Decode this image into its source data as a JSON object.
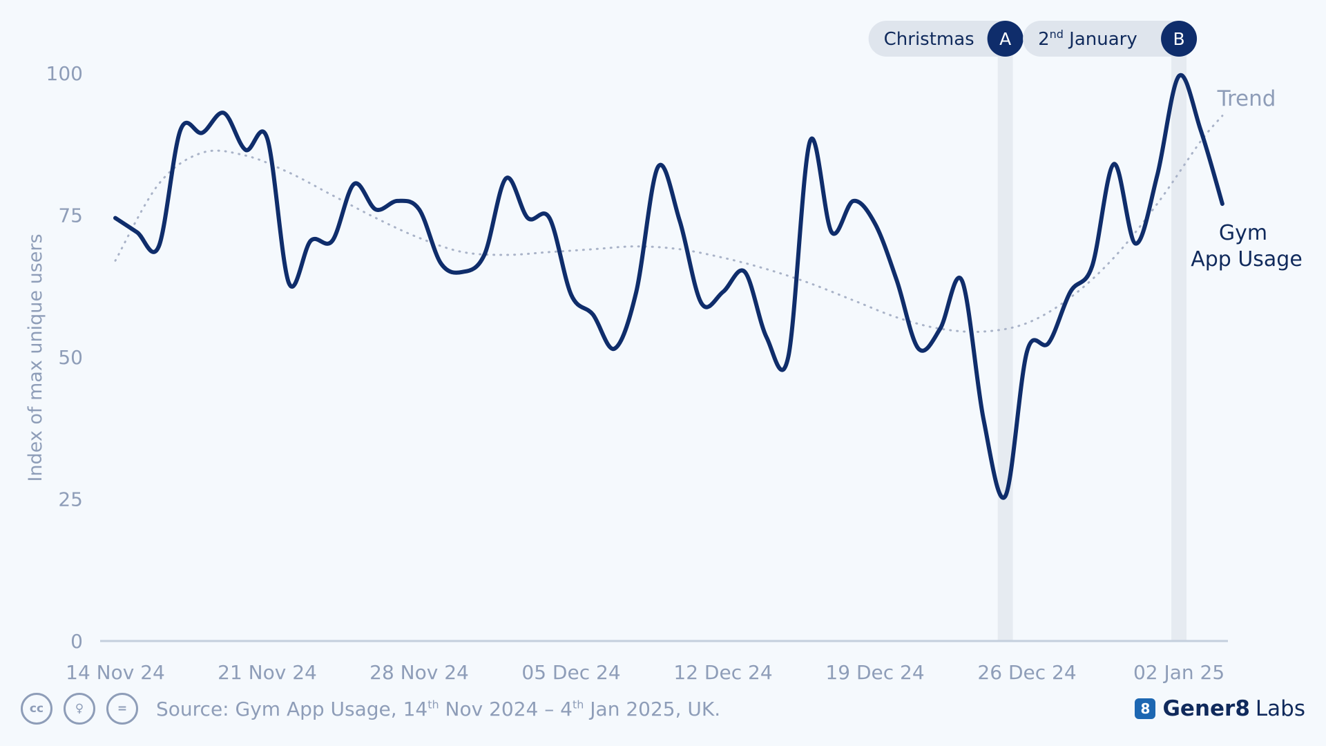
{
  "chart_data": {
    "type": "line",
    "title": "",
    "xlabel": "",
    "ylabel": "Index of max unique users",
    "ylim": [
      0,
      100
    ],
    "yticks": [
      "0",
      "25",
      "50",
      "75",
      "100"
    ],
    "grid": false,
    "xticks": [
      {
        "date": "2024-11-14",
        "label": "14 Nov 24"
      },
      {
        "date": "2024-11-21",
        "label": "21 Nov 24"
      },
      {
        "date": "2024-11-28",
        "label": "28 Nov 24"
      },
      {
        "date": "2024-12-05",
        "label": "05 Dec 24"
      },
      {
        "date": "2024-12-12",
        "label": "12 Dec 24"
      },
      {
        "date": "2024-12-19",
        "label": "19 Dec 24"
      },
      {
        "date": "2024-12-26",
        "label": "26 Dec 24"
      },
      {
        "date": "2025-01-02",
        "label": "02 Jan 25"
      }
    ],
    "series": [
      {
        "name": "Gym App Usage",
        "color": "#0f2d6b",
        "style": "solid",
        "points": [
          [
            "2024-11-14",
            74.5
          ],
          [
            "2024-11-15",
            72
          ],
          [
            "2024-11-16",
            69.5
          ],
          [
            "2024-11-17",
            90
          ],
          [
            "2024-11-18",
            89.5
          ],
          [
            "2024-11-19",
            93
          ],
          [
            "2024-11-20",
            86.5
          ],
          [
            "2024-11-21",
            88.5
          ],
          [
            "2024-11-22",
            63
          ],
          [
            "2024-11-23",
            70.5
          ],
          [
            "2024-11-24",
            70.5
          ],
          [
            "2024-11-25",
            80.5
          ],
          [
            "2024-11-26",
            76
          ],
          [
            "2024-11-27",
            77.5
          ],
          [
            "2024-11-28",
            76
          ],
          [
            "2024-11-29",
            66.5
          ],
          [
            "2024-11-30",
            65
          ],
          [
            "2024-12-01",
            68
          ],
          [
            "2024-12-02",
            81.5
          ],
          [
            "2024-12-03",
            74.5
          ],
          [
            "2024-12-04",
            74.5
          ],
          [
            "2024-12-05",
            61
          ],
          [
            "2024-12-06",
            57.5
          ],
          [
            "2024-12-07",
            51.5
          ],
          [
            "2024-12-08",
            61.5
          ],
          [
            "2024-12-09",
            83.5
          ],
          [
            "2024-12-10",
            74
          ],
          [
            "2024-12-11",
            59.5
          ],
          [
            "2024-12-12",
            61.5
          ],
          [
            "2024-12-13",
            65
          ],
          [
            "2024-12-14",
            53.5
          ],
          [
            "2024-12-15",
            50
          ],
          [
            "2024-12-16",
            88
          ],
          [
            "2024-12-17",
            72
          ],
          [
            "2024-12-18",
            77.5
          ],
          [
            "2024-12-19",
            73.5
          ],
          [
            "2024-12-20",
            63.5
          ],
          [
            "2024-12-21",
            51.5
          ],
          [
            "2024-12-22",
            55
          ],
          [
            "2024-12-23",
            63.5
          ],
          [
            "2024-12-24",
            39
          ],
          [
            "2024-12-25",
            25.5
          ],
          [
            "2024-12-26",
            51
          ],
          [
            "2024-12-27",
            52.5
          ],
          [
            "2024-12-28",
            61.5
          ],
          [
            "2024-12-29",
            66
          ],
          [
            "2024-12-30",
            84
          ],
          [
            "2024-12-31",
            70
          ],
          [
            "2025-01-01",
            82
          ],
          [
            "2025-01-02",
            99.5
          ],
          [
            "2025-01-03",
            90
          ],
          [
            "2025-01-04",
            77
          ]
        ]
      },
      {
        "name": "Trend",
        "color": "#a9b3c8",
        "style": "dotted",
        "points": [
          [
            "2024-11-14",
            67
          ],
          [
            "2024-11-16",
            80.5
          ],
          [
            "2024-11-18",
            86
          ],
          [
            "2024-11-20",
            85.5
          ],
          [
            "2024-11-22",
            82.5
          ],
          [
            "2024-11-24",
            78.5
          ],
          [
            "2024-11-26",
            74.5
          ],
          [
            "2024-11-28",
            71
          ],
          [
            "2024-11-30",
            68.5
          ],
          [
            "2024-12-02",
            68
          ],
          [
            "2024-12-04",
            68.5
          ],
          [
            "2024-12-06",
            69
          ],
          [
            "2024-12-08",
            69.5
          ],
          [
            "2024-12-10",
            69
          ],
          [
            "2024-12-12",
            67.5
          ],
          [
            "2024-12-14",
            65.5
          ],
          [
            "2024-12-16",
            63
          ],
          [
            "2024-12-18",
            60
          ],
          [
            "2024-12-20",
            57
          ],
          [
            "2024-12-22",
            55
          ],
          [
            "2024-12-24",
            54.5
          ],
          [
            "2024-12-26",
            56
          ],
          [
            "2024-12-28",
            60.5
          ],
          [
            "2024-12-30",
            67.5
          ],
          [
            "2025-01-01",
            77
          ],
          [
            "2025-01-03",
            88
          ],
          [
            "2025-01-04",
            92.5
          ]
        ]
      }
    ],
    "highlights": [
      {
        "date": "2024-12-25",
        "label": "Christmas",
        "marker": "A"
      },
      {
        "date": "2025-01-02",
        "label_main": "2",
        "label_sup": "nd",
        "label_rest": " January",
        "marker": "B"
      }
    ],
    "series_labels": {
      "gym_line1": "Gym",
      "gym_line2": "App Usage",
      "trend": "Trend"
    }
  },
  "footer": {
    "cc_icons": [
      "creative-commons-icon",
      "attribution-icon",
      "no-derivatives-icon"
    ],
    "cc_glyphs": [
      "cc",
      "♀",
      "="
    ],
    "source_parts": [
      "Source: Gym App Usage, 14",
      "th",
      " Nov 2024 – 4",
      "th",
      " Jan 2025, UK."
    ],
    "brand_bold": "Gener8",
    "brand_rest": "Labs",
    "brand_logo_glyph": "8"
  },
  "colors": {
    "background": "#f5f9fd",
    "line": "#0f2d6b",
    "trend": "#a9b3c8",
    "axis_text": "#8e9db8",
    "highlight_band": "#e6ebf1",
    "callout_bg": "#dfe5ed",
    "marker_bg": "#0f2d6b",
    "brand_logo": "#1d67b2"
  }
}
